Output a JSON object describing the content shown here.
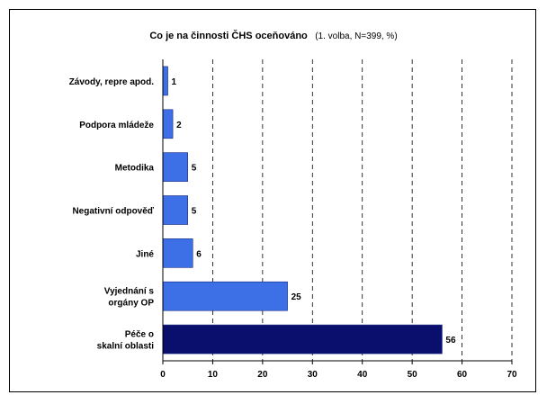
{
  "chart_data": {
    "type": "bar",
    "orientation": "horizontal",
    "title": "Co je na činnosti ČHS oceňováno",
    "subtitle": "(1. volba, N=399, %)",
    "categories": [
      "Závody, repre apod.",
      "Podpora mládeže",
      "Metodika",
      "Negativní odpověď",
      "Jiné",
      "Vyjednání s orgány OP",
      "Péče o skalní oblasti"
    ],
    "values": [
      1,
      2,
      5,
      5,
      6,
      25,
      56
    ],
    "data_labels": [
      "1",
      "2",
      "5",
      "5",
      "6",
      "25",
      "56"
    ],
    "xlim": [
      0,
      70
    ],
    "xticks": [
      "0",
      "10",
      "20",
      "30",
      "40",
      "50",
      "60",
      "70"
    ],
    "grid": "vertical-dashed",
    "legend": "none",
    "colors": {
      "bar": "#3d6fe6",
      "highlight": "#0a0f6e",
      "grid": "#000000"
    },
    "highlight_index": 6
  }
}
